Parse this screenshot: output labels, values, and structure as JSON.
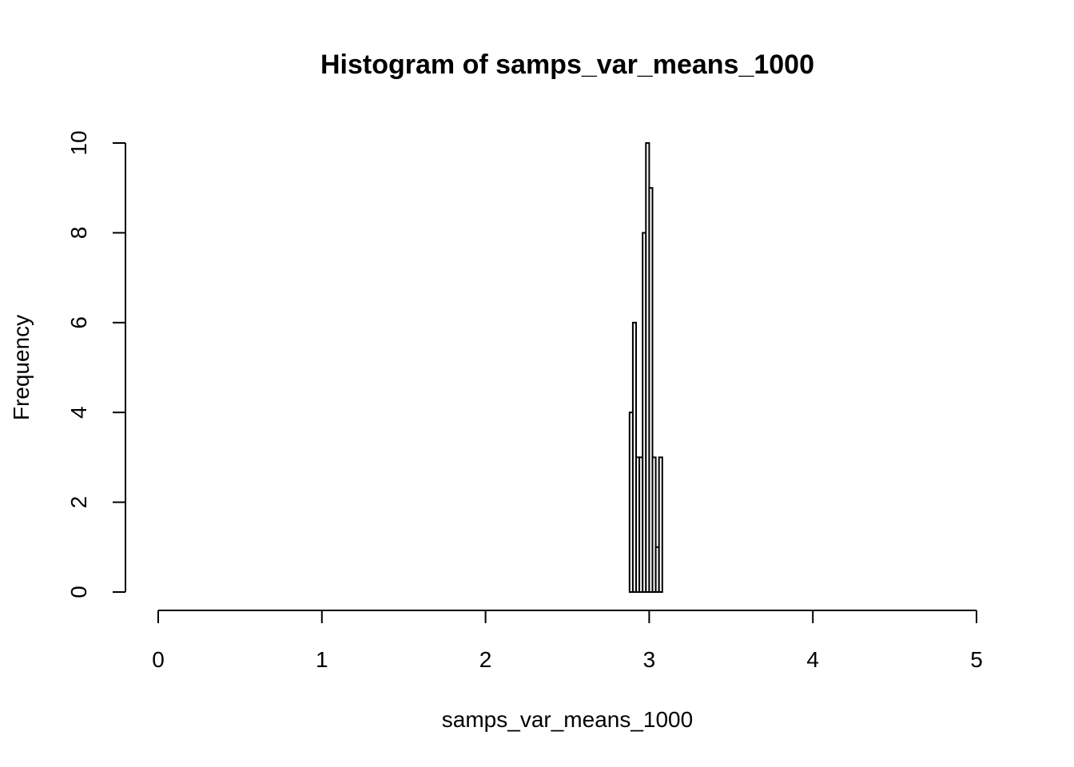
{
  "chart_data": {
    "type": "bar",
    "title": "Histogram of samps_var_means_1000",
    "xlabel": "samps_var_means_1000",
    "ylabel": "Frequency",
    "xlim": [
      0,
      5
    ],
    "ylim": [
      0,
      10
    ],
    "x_ticks": [
      0,
      1,
      2,
      3,
      4,
      5
    ],
    "y_ticks": [
      0,
      2,
      4,
      6,
      8,
      10
    ],
    "bin_width": 0.02,
    "bins": [
      {
        "start": 2.88,
        "end": 2.9,
        "count": 4
      },
      {
        "start": 2.9,
        "end": 2.92,
        "count": 6
      },
      {
        "start": 2.92,
        "end": 2.94,
        "count": 3
      },
      {
        "start": 2.94,
        "end": 2.96,
        "count": 3
      },
      {
        "start": 2.96,
        "end": 2.98,
        "count": 8
      },
      {
        "start": 2.98,
        "end": 3.0,
        "count": 10
      },
      {
        "start": 3.0,
        "end": 3.02,
        "count": 9
      },
      {
        "start": 3.02,
        "end": 3.04,
        "count": 3
      },
      {
        "start": 3.04,
        "end": 3.06,
        "count": 1
      },
      {
        "start": 3.06,
        "end": 3.08,
        "count": 3
      }
    ],
    "grid": false,
    "legend": "none",
    "bar_fill": "#ffffff",
    "bar_stroke": "#000000"
  }
}
